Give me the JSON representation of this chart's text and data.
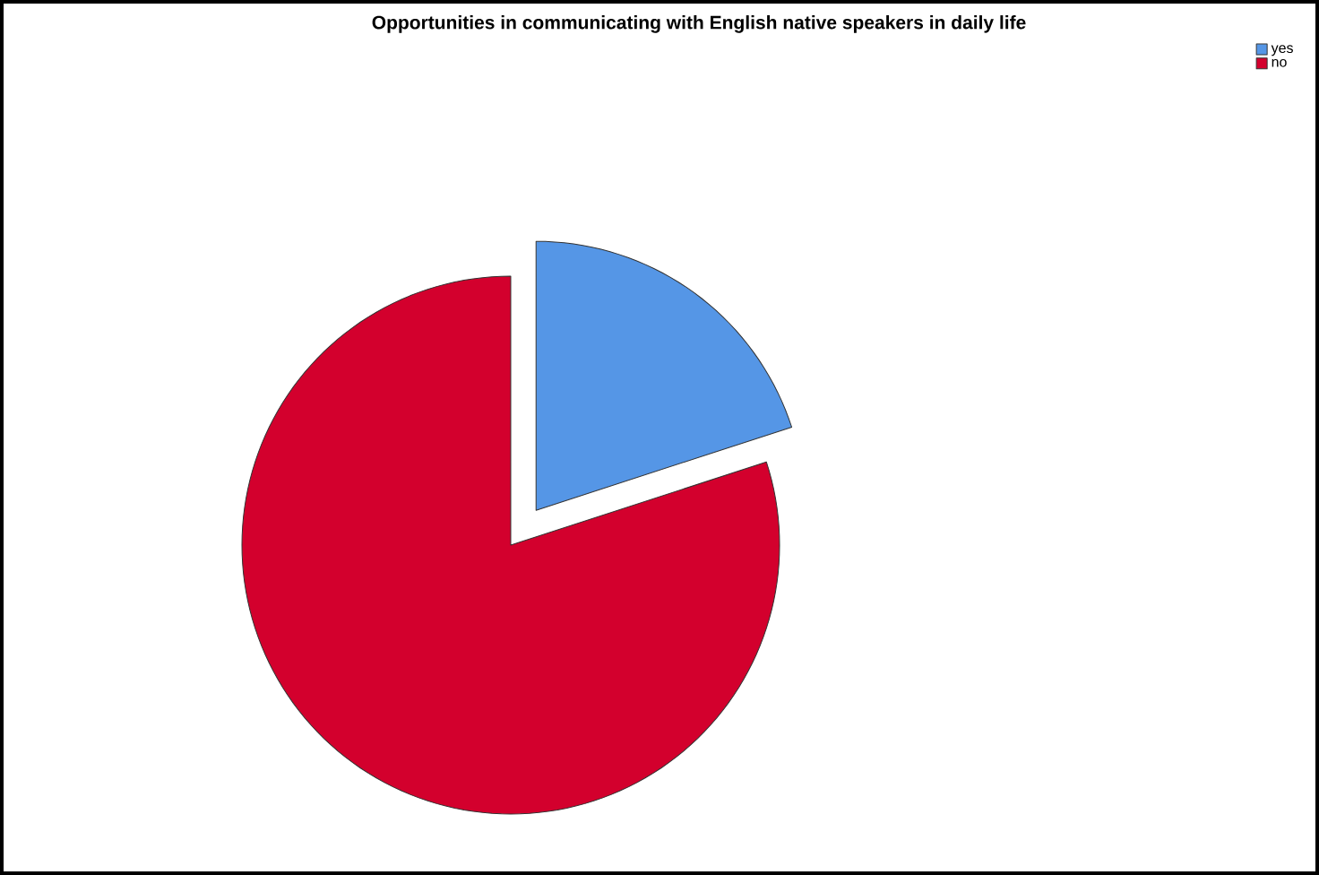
{
  "chart_data": {
    "type": "pie",
    "title": "Opportunities in communicating with English native speakers in daily life",
    "categories": [
      "yes",
      "no"
    ],
    "values": [
      20,
      80
    ],
    "colors": [
      "#5596e6",
      "#d3002d"
    ],
    "legend": "top right"
  }
}
